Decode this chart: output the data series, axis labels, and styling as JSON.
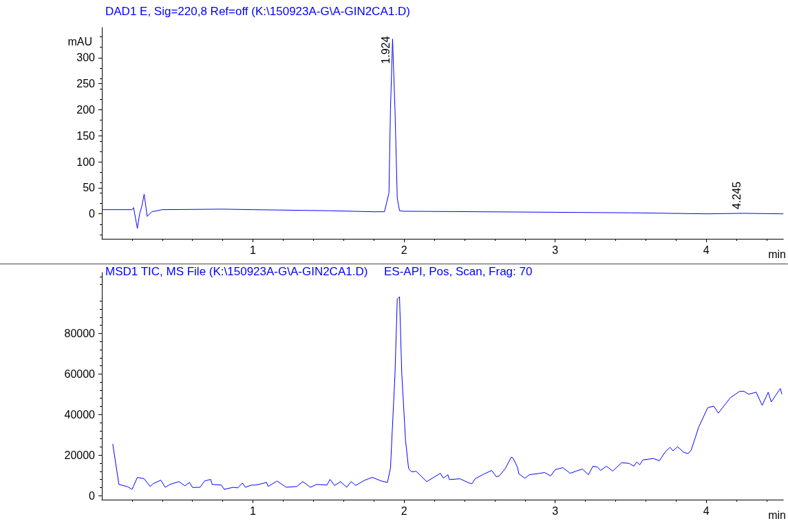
{
  "chart_data": [
    {
      "type": "line",
      "title": "DAD1 E, Sig=220,8 Ref=off (K:\\150923A-G\\A-GIN2CA1.D)",
      "xlabel": "min",
      "ylabel": "mAU",
      "series": [
        {
          "color": "#0000ff",
          "x": [
            0,
            0.2,
            0.21,
            0.235,
            0.25,
            0.265,
            0.28,
            0.3,
            0.33,
            0.4,
            0.8,
            1.0,
            1.5,
            1.8,
            1.87,
            1.9,
            1.91,
            1.924,
            1.94,
            1.955,
            1.97,
            2.0,
            2.5,
            3.0,
            3.5,
            4.0,
            4.245,
            4.51
          ],
          "values": [
            8,
            8,
            12,
            -28,
            0,
            15,
            38,
            -5,
            4,
            8,
            9,
            8,
            6,
            4,
            4,
            40,
            200,
            336,
            200,
            30,
            6,
            5,
            4,
            3,
            2,
            0,
            1,
            0
          ]
        }
      ],
      "annotations": [
        {
          "text": "1.924",
          "x": 1.924,
          "y": 336
        },
        {
          "text": "4.245",
          "x": 4.245,
          "y": 1
        }
      ],
      "xlim": [
        0,
        4.51
      ],
      "xticks": [
        1,
        2,
        3,
        4
      ],
      "ylim": [
        -48,
        358
      ],
      "yticks": [
        0,
        50,
        100,
        150,
        200,
        250,
        300
      ],
      "grid": false,
      "marker": "none",
      "line_style": "solid"
    },
    {
      "type": "line",
      "title": "MSD1 TIC, MS File (K:\\150923A-G\\A-GIN2CA1.D)     ES-API, Pos, Scan, Frag: 70",
      "xlabel": "min",
      "series": [
        {
          "color": "#0000ff",
          "x": [
            0.072,
            0.113,
            0.167,
            0.2,
            0.235,
            0.28,
            0.32,
            0.34,
            0.39,
            0.42,
            0.45,
            0.51,
            0.55,
            0.58,
            0.6,
            0.65,
            0.68,
            0.72,
            0.73,
            0.79,
            0.81,
            0.87,
            0.9,
            0.93,
            0.95,
            0.99,
            1.02,
            1.09,
            1.1,
            1.16,
            1.22,
            1.29,
            1.33,
            1.38,
            1.42,
            1.49,
            1.51,
            1.54,
            1.58,
            1.62,
            1.65,
            1.68,
            1.74,
            1.79,
            1.85,
            1.89,
            1.91,
            1.94,
            1.955,
            1.97,
            1.985,
            2.01,
            2.03,
            2.05,
            2.08,
            2.15,
            2.24,
            2.26,
            2.29,
            2.3,
            2.37,
            2.43,
            2.45,
            2.47,
            2.52,
            2.58,
            2.61,
            2.63,
            2.67,
            2.71,
            2.72,
            2.75,
            2.76,
            2.8,
            2.83,
            2.9,
            2.93,
            2.97,
            3.0,
            3.05,
            3.1,
            3.14,
            3.18,
            3.22,
            3.25,
            3.28,
            3.3,
            3.34,
            3.38,
            3.44,
            3.49,
            3.52,
            3.54,
            3.56,
            3.58,
            3.65,
            3.69,
            3.73,
            3.76,
            3.78,
            3.81,
            3.85,
            3.88,
            3.9,
            3.95,
            4.01,
            4.05,
            4.08,
            4.12,
            4.16,
            4.22,
            4.25,
            4.28,
            4.33,
            4.37,
            4.41,
            4.43,
            4.49,
            4.5
          ],
          "values": [
            25500,
            5500,
            4500,
            3100,
            9000,
            8300,
            4500,
            5900,
            7600,
            4100,
            5500,
            6900,
            4800,
            6500,
            4000,
            4100,
            7200,
            8000,
            5500,
            5200,
            3100,
            4100,
            3800,
            6200,
            4100,
            5200,
            5200,
            6500,
            4500,
            7200,
            4100,
            4500,
            6900,
            4100,
            5500,
            5200,
            8000,
            5000,
            6900,
            4100,
            6900,
            5000,
            7600,
            9000,
            7200,
            6500,
            13500,
            60000,
            97000,
            98000,
            60000,
            27000,
            13400,
            11700,
            12000,
            6900,
            11000,
            8600,
            10300,
            7900,
            8300,
            6200,
            5900,
            8300,
            10300,
            12400,
            9300,
            9700,
            13400,
            19000,
            18600,
            14100,
            10700,
            8600,
            10300,
            11000,
            11400,
            9700,
            12800,
            13800,
            11000,
            12100,
            13100,
            10300,
            14500,
            14100,
            12400,
            14500,
            12100,
            16200,
            15900,
            14500,
            16600,
            15200,
            17600,
            18300,
            17200,
            21700,
            23800,
            22100,
            24100,
            21400,
            20700,
            22400,
            33800,
            43400,
            44100,
            40700,
            44500,
            48300,
            51400,
            51400,
            50000,
            51000,
            44500,
            51000,
            46200,
            52800,
            50000
          ]
        }
      ],
      "xlim": [
        0,
        4.51
      ],
      "xticks": [
        1,
        2,
        3,
        4
      ],
      "ylim": [
        -2000,
        110000
      ],
      "yticks": [
        0,
        20000,
        40000,
        60000,
        80000
      ],
      "grid": false,
      "marker": "none",
      "line_style": "solid"
    }
  ]
}
